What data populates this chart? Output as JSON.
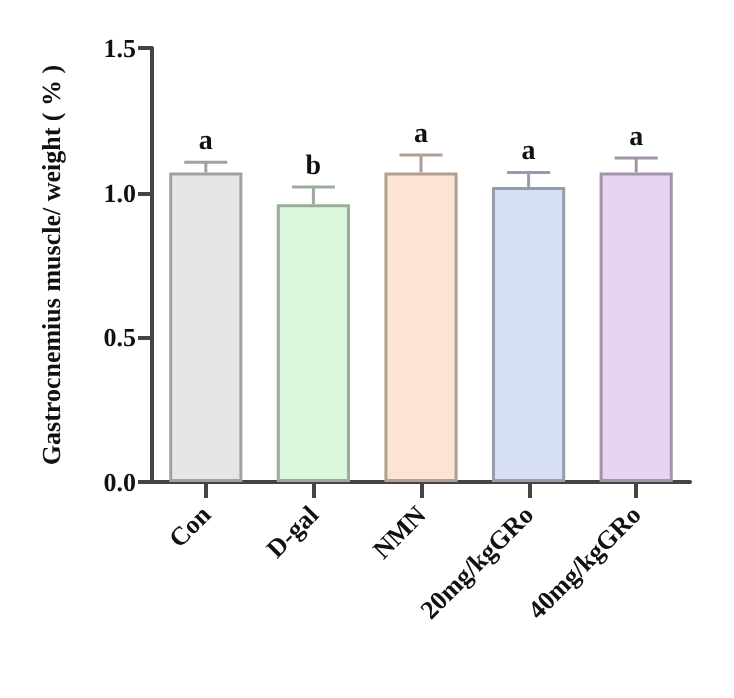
{
  "chart_data": {
    "type": "bar",
    "ylabel": "Gastrocnemius muscle/ weight ( % )",
    "categories": [
      "Con",
      "D-gal",
      "NMN",
      "20mg/kgGRo",
      "40mg/kgGRo"
    ],
    "values": [
      1.07,
      0.96,
      1.07,
      1.02,
      1.07
    ],
    "errors": [
      0.035,
      0.06,
      0.06,
      0.05,
      0.05
    ],
    "colors": [
      "#e6e6e6",
      "#ddf7dc",
      "#fde3d3",
      "#d6dff4",
      "#e8d4f2"
    ],
    "ylim": [
      0,
      1.5
    ],
    "yticks": [
      {
        "value": 0,
        "label": "0.0"
      },
      0.5,
      {
        "value": 1,
        "label": "1.0"
      },
      1.5
    ],
    "grid": false,
    "annotations": [
      {
        "text": "a",
        "x": "Con",
        "y": 1.105
      },
      {
        "text": "b",
        "x": "D-gal",
        "y": 1.02
      },
      {
        "text": "a",
        "x": "NMN",
        "y": 1.13
      },
      {
        "text": "a",
        "x": "20mg/kgGRo",
        "y": 1.07
      },
      {
        "text": "a",
        "x": "40mg/kgGRo",
        "y": 1.12
      }
    ]
  }
}
